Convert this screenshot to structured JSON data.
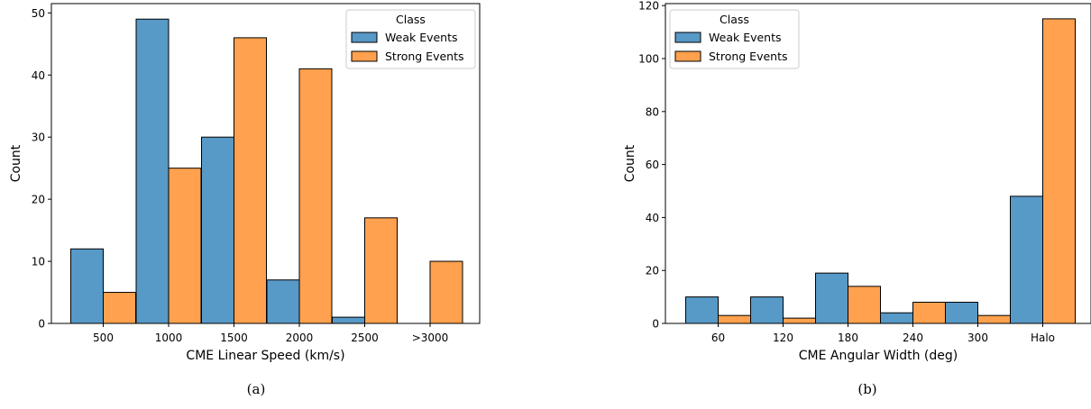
{
  "chart_data": [
    {
      "type": "bar",
      "caption": "(a)",
      "categories": [
        "500",
        "1000",
        "1500",
        "2000",
        "2500",
        ">3000"
      ],
      "series": [
        {
          "name": "Weak Events",
          "values": [
            12,
            49,
            30,
            7,
            1,
            0
          ]
        },
        {
          "name": "Strong Events",
          "values": [
            5,
            25,
            46,
            41,
            17,
            10
          ]
        }
      ],
      "xlabel": "CME Linear Speed (km/s)",
      "ylabel": "Count",
      "ylim": [
        0,
        51.5
      ],
      "yticks": [
        0,
        10,
        20,
        30,
        40,
        50
      ],
      "legend": {
        "title": "Class",
        "position": "top-right"
      },
      "grid": false
    },
    {
      "type": "bar",
      "caption": "(b)",
      "categories": [
        "60",
        "120",
        "180",
        "240",
        "300",
        "Halo"
      ],
      "series": [
        {
          "name": "Weak Events",
          "values": [
            10,
            10,
            19,
            4,
            8,
            48
          ]
        },
        {
          "name": "Strong Events",
          "values": [
            3,
            2,
            14,
            8,
            3,
            115
          ]
        }
      ],
      "xlabel": "CME Angular Width (deg)",
      "ylabel": "Count",
      "ylim": [
        0,
        120.75
      ],
      "yticks": [
        0,
        20,
        40,
        60,
        80,
        100,
        120
      ],
      "legend": {
        "title": "Class",
        "position": "top-left"
      },
      "grid": false
    }
  ],
  "colors": {
    "weak": "#5799c7",
    "strong": "#ffa14e",
    "edge": "#000000"
  }
}
